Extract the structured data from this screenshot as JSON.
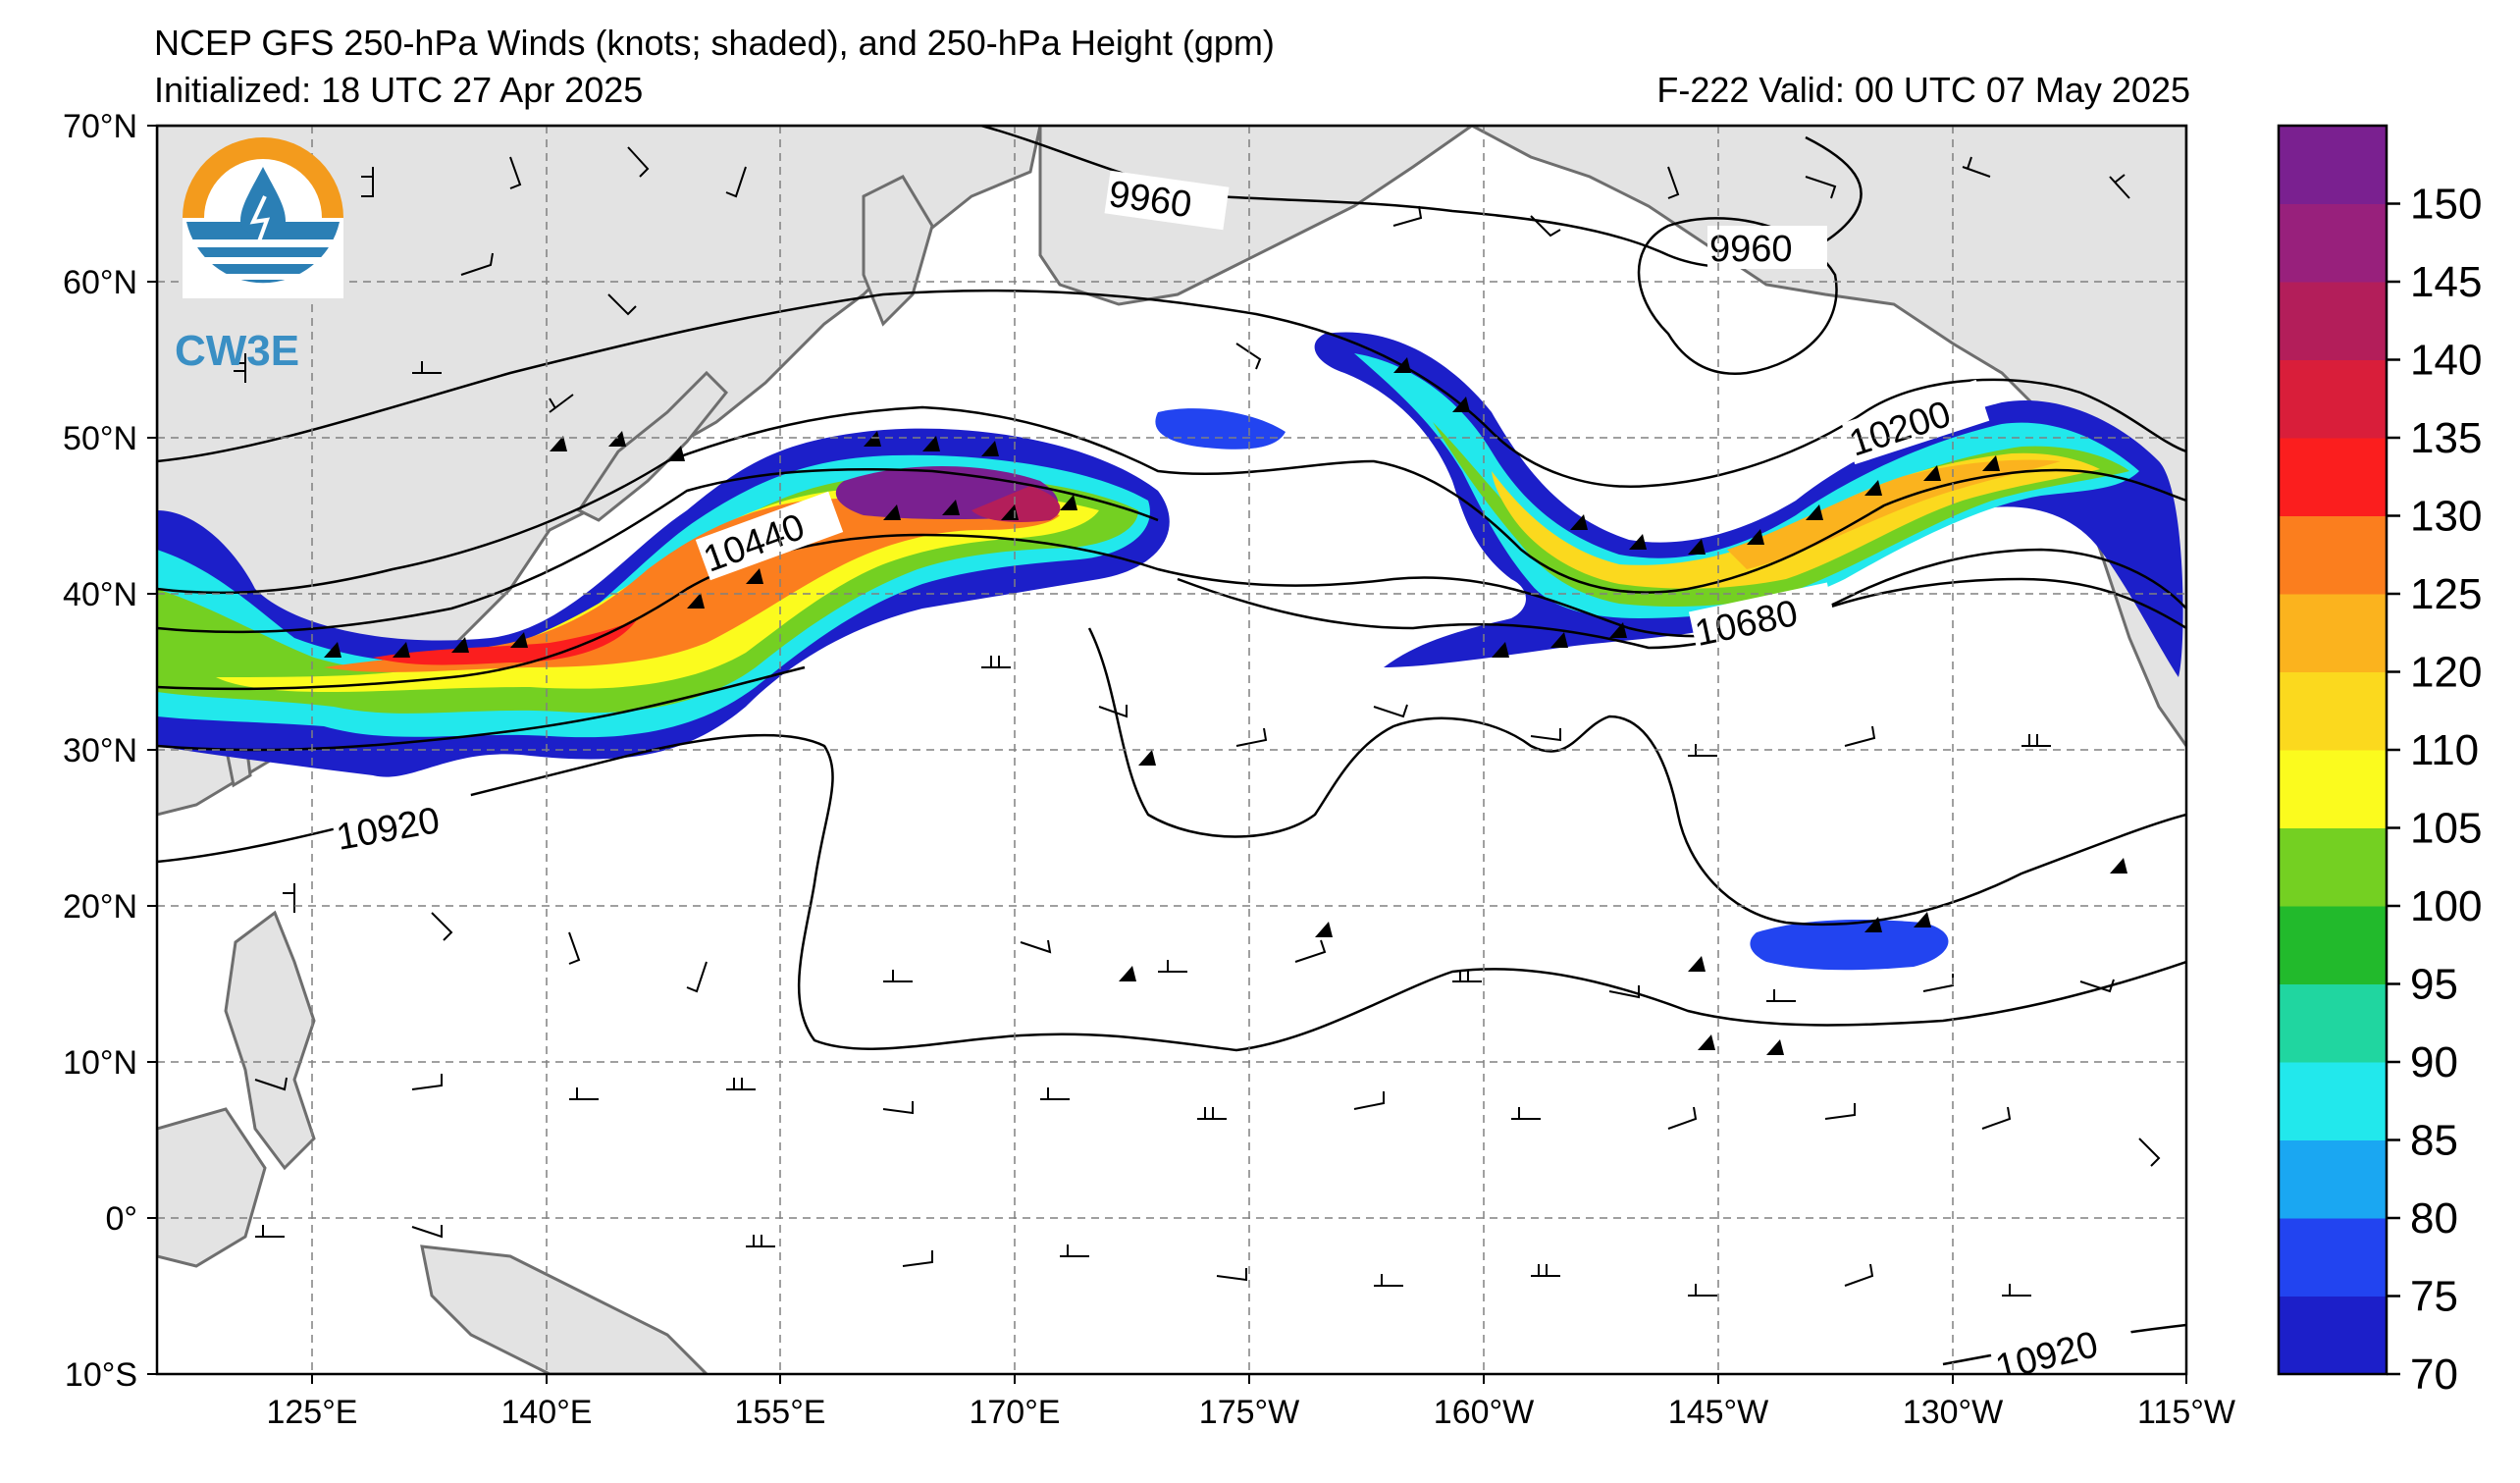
{
  "header": {
    "title": "NCEP GFS 250-hPa Winds (knots; shaded), and 250-hPa Height (gpm)",
    "initialized": "Initialized: 18 UTC 27 Apr 2025",
    "valid": "F-222  Valid: 00 UTC 07 May 2025"
  },
  "logo": {
    "text": "CW3E",
    "icon": "water-drop-logo-icon"
  },
  "map": {
    "lat_labels": [
      "70°N",
      "60°N",
      "50°N",
      "40°N",
      "30°N",
      "20°N",
      "10°N",
      "0°",
      "10°S"
    ],
    "lon_labels": [
      "125°E",
      "140°E",
      "155°E",
      "170°E",
      "175°W",
      "160°W",
      "145°W",
      "130°W",
      "115°W"
    ],
    "lat_range": [
      -10,
      70
    ],
    "lon_range_deg_east": [
      115,
      245
    ],
    "contour_labels": [
      "9960",
      "9960",
      "10200",
      "10440",
      "10680",
      "10920",
      "10920"
    ]
  },
  "colorbar": {
    "levels": [
      "70",
      "75",
      "80",
      "85",
      "90",
      "95",
      "100",
      "105",
      "110",
      "120",
      "125",
      "130",
      "135",
      "140",
      "145",
      "150"
    ],
    "colors": [
      "#1c1fc9",
      "#2244f0",
      "#1aa7f2",
      "#22e8ec",
      "#20d6a0",
      "#22ba2c",
      "#74d022",
      "#fbfb1e",
      "#fbd91e",
      "#fbb31e",
      "#fb7e1e",
      "#fb1e1e",
      "#d91e3a",
      "#b31e5a",
      "#98207c",
      "#7a2090"
    ]
  }
}
